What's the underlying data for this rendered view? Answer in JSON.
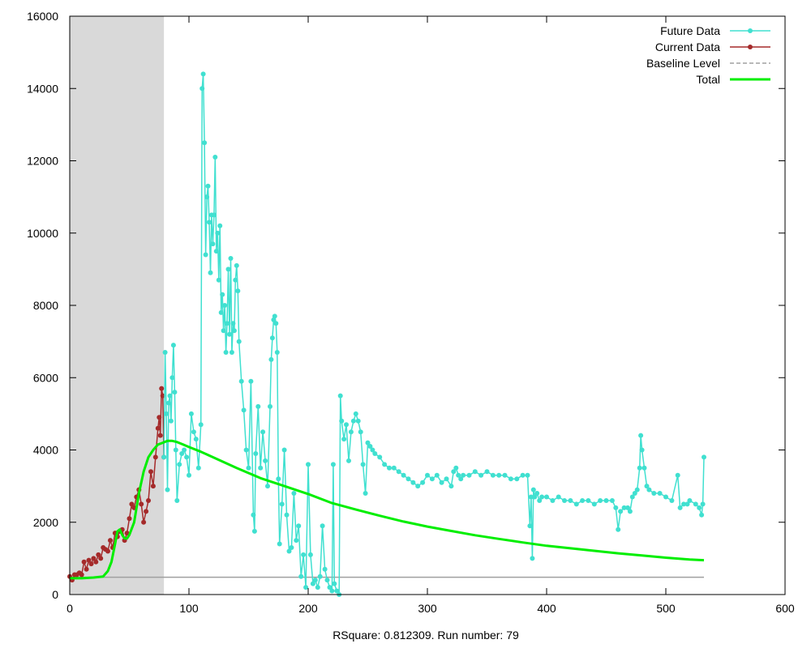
{
  "chart_data": {
    "type": "line",
    "title": "",
    "caption": "RSquare: 0.812309. Run number: 79",
    "xlim": [
      0,
      600
    ],
    "ylim": [
      0,
      16000
    ],
    "xticks": [
      0,
      100,
      200,
      300,
      400,
      500,
      600
    ],
    "yticks": [
      0,
      2000,
      4000,
      6000,
      8000,
      10000,
      12000,
      14000,
      16000
    ],
    "grid": false,
    "legend_position": "top-right",
    "shaded_region": {
      "x_start": 0,
      "x_end": 79,
      "color": "#d9d9d9"
    },
    "colors": {
      "future": "#40e0d0",
      "current": "#a52a2a",
      "baseline": "#a0a0a0",
      "total": "#00ee00"
    },
    "series": [
      {
        "name": "Current Data",
        "key": "current",
        "points": [
          [
            0,
            500
          ],
          [
            2,
            400
          ],
          [
            4,
            550
          ],
          [
            6,
            550
          ],
          [
            8,
            600
          ],
          [
            10,
            550
          ],
          [
            12,
            900
          ],
          [
            14,
            700
          ],
          [
            16,
            950
          ],
          [
            18,
            850
          ],
          [
            20,
            1000
          ],
          [
            22,
            900
          ],
          [
            24,
            1100
          ],
          [
            26,
            1000
          ],
          [
            28,
            1300
          ],
          [
            30,
            1250
          ],
          [
            32,
            1200
          ],
          [
            34,
            1500
          ],
          [
            36,
            1300
          ],
          [
            38,
            1700
          ],
          [
            40,
            1600
          ],
          [
            42,
            1750
          ],
          [
            44,
            1800
          ],
          [
            46,
            1500
          ],
          [
            48,
            1700
          ],
          [
            50,
            2100
          ],
          [
            52,
            2500
          ],
          [
            54,
            2400
          ],
          [
            56,
            2700
          ],
          [
            58,
            2900
          ],
          [
            60,
            2500
          ],
          [
            62,
            2000
          ],
          [
            64,
            2300
          ],
          [
            66,
            2600
          ],
          [
            68,
            3400
          ],
          [
            70,
            3000
          ],
          [
            72,
            3800
          ],
          [
            74,
            4600
          ],
          [
            75,
            4900
          ],
          [
            76,
            4400
          ],
          [
            77,
            5700
          ],
          [
            78,
            5500
          ],
          [
            79,
            3800
          ]
        ]
      },
      {
        "name": "Future Data",
        "key": "future",
        "points": [
          [
            79,
            3800
          ],
          [
            80,
            6700
          ],
          [
            81,
            5000
          ],
          [
            82,
            2900
          ],
          [
            83,
            5300
          ],
          [
            84,
            5500
          ],
          [
            85,
            4800
          ],
          [
            86,
            6000
          ],
          [
            87,
            6900
          ],
          [
            88,
            5600
          ],
          [
            89,
            4000
          ],
          [
            90,
            2600
          ],
          [
            92,
            3600
          ],
          [
            94,
            3900
          ],
          [
            96,
            4000
          ],
          [
            98,
            3800
          ],
          [
            100,
            3300
          ],
          [
            102,
            5000
          ],
          [
            104,
            4500
          ],
          [
            106,
            4300
          ],
          [
            108,
            3500
          ],
          [
            110,
            4700
          ],
          [
            111,
            14000
          ],
          [
            112,
            14400
          ],
          [
            113,
            12500
          ],
          [
            114,
            9400
          ],
          [
            115,
            11000
          ],
          [
            116,
            11300
          ],
          [
            117,
            10300
          ],
          [
            118,
            8900
          ],
          [
            119,
            10500
          ],
          [
            120,
            9700
          ],
          [
            121,
            10500
          ],
          [
            122,
            12100
          ],
          [
            123,
            9500
          ],
          [
            124,
            10000
          ],
          [
            125,
            8700
          ],
          [
            126,
            10200
          ],
          [
            127,
            7800
          ],
          [
            128,
            8300
          ],
          [
            129,
            7300
          ],
          [
            130,
            8000
          ],
          [
            131,
            6700
          ],
          [
            132,
            7500
          ],
          [
            133,
            9000
          ],
          [
            134,
            7200
          ],
          [
            135,
            9300
          ],
          [
            136,
            6700
          ],
          [
            137,
            7500
          ],
          [
            138,
            7300
          ],
          [
            139,
            8700
          ],
          [
            140,
            9100
          ],
          [
            141,
            8400
          ],
          [
            142,
            7000
          ],
          [
            144,
            5900
          ],
          [
            146,
            5100
          ],
          [
            148,
            4000
          ],
          [
            150,
            3500
          ],
          [
            152,
            5900
          ],
          [
            154,
            2200
          ],
          [
            155,
            1750
          ],
          [
            156,
            3900
          ],
          [
            158,
            5200
          ],
          [
            160,
            3500
          ],
          [
            162,
            4500
          ],
          [
            164,
            3700
          ],
          [
            166,
            3000
          ],
          [
            168,
            5200
          ],
          [
            169,
            6500
          ],
          [
            170,
            7100
          ],
          [
            171,
            7600
          ],
          [
            172,
            7700
          ],
          [
            173,
            7500
          ],
          [
            174,
            6700
          ],
          [
            175,
            3200
          ],
          [
            176,
            1400
          ],
          [
            178,
            2500
          ],
          [
            180,
            4000
          ],
          [
            182,
            2200
          ],
          [
            184,
            1200
          ],
          [
            186,
            1300
          ],
          [
            188,
            2800
          ],
          [
            190,
            1500
          ],
          [
            192,
            1900
          ],
          [
            194,
            500
          ],
          [
            196,
            1100
          ],
          [
            198,
            200
          ],
          [
            200,
            3600
          ],
          [
            202,
            1100
          ],
          [
            204,
            300
          ],
          [
            206,
            400
          ],
          [
            208,
            200
          ],
          [
            210,
            500
          ],
          [
            212,
            1900
          ],
          [
            214,
            700
          ],
          [
            216,
            400
          ],
          [
            218,
            200
          ],
          [
            220,
            100
          ],
          [
            221,
            3600
          ],
          [
            222,
            300
          ],
          [
            224,
            100
          ],
          [
            226,
            0
          ],
          [
            227,
            5500
          ],
          [
            228,
            4800
          ],
          [
            230,
            4300
          ],
          [
            232,
            4700
          ],
          [
            234,
            3700
          ],
          [
            236,
            4500
          ],
          [
            238,
            4800
          ],
          [
            240,
            5000
          ],
          [
            242,
            4800
          ],
          [
            244,
            4500
          ],
          [
            246,
            3600
          ],
          [
            248,
            2800
          ],
          [
            250,
            4200
          ],
          [
            252,
            4100
          ],
          [
            254,
            4000
          ],
          [
            256,
            3900
          ],
          [
            260,
            3800
          ],
          [
            264,
            3600
          ],
          [
            268,
            3500
          ],
          [
            272,
            3500
          ],
          [
            276,
            3400
          ],
          [
            280,
            3300
          ],
          [
            284,
            3200
          ],
          [
            288,
            3100
          ],
          [
            292,
            3000
          ],
          [
            296,
            3100
          ],
          [
            300,
            3300
          ],
          [
            304,
            3200
          ],
          [
            308,
            3300
          ],
          [
            312,
            3100
          ],
          [
            316,
            3200
          ],
          [
            320,
            3000
          ],
          [
            322,
            3400
          ],
          [
            324,
            3500
          ],
          [
            326,
            3300
          ],
          [
            328,
            3200
          ],
          [
            330,
            3300
          ],
          [
            335,
            3300
          ],
          [
            340,
            3400
          ],
          [
            345,
            3300
          ],
          [
            350,
            3400
          ],
          [
            355,
            3300
          ],
          [
            360,
            3300
          ],
          [
            365,
            3300
          ],
          [
            370,
            3200
          ],
          [
            375,
            3200
          ],
          [
            380,
            3300
          ],
          [
            384,
            3300
          ],
          [
            386,
            1900
          ],
          [
            387,
            2700
          ],
          [
            388,
            1000
          ],
          [
            389,
            2900
          ],
          [
            390,
            2700
          ],
          [
            392,
            2800
          ],
          [
            394,
            2600
          ],
          [
            396,
            2700
          ],
          [
            400,
            2700
          ],
          [
            405,
            2600
          ],
          [
            410,
            2700
          ],
          [
            415,
            2600
          ],
          [
            420,
            2600
          ],
          [
            425,
            2500
          ],
          [
            430,
            2600
          ],
          [
            435,
            2600
          ],
          [
            440,
            2500
          ],
          [
            445,
            2600
          ],
          [
            450,
            2600
          ],
          [
            455,
            2600
          ],
          [
            458,
            2400
          ],
          [
            460,
            1800
          ],
          [
            462,
            2300
          ],
          [
            465,
            2400
          ],
          [
            468,
            2400
          ],
          [
            470,
            2300
          ],
          [
            472,
            2700
          ],
          [
            474,
            2800
          ],
          [
            476,
            2900
          ],
          [
            478,
            3500
          ],
          [
            479,
            4400
          ],
          [
            480,
            4000
          ],
          [
            482,
            3500
          ],
          [
            484,
            3000
          ],
          [
            486,
            2900
          ],
          [
            490,
            2800
          ],
          [
            495,
            2800
          ],
          [
            500,
            2700
          ],
          [
            505,
            2600
          ],
          [
            510,
            3300
          ],
          [
            512,
            2400
          ],
          [
            515,
            2500
          ],
          [
            518,
            2500
          ],
          [
            520,
            2600
          ],
          [
            525,
            2500
          ],
          [
            528,
            2400
          ],
          [
            530,
            2200
          ],
          [
            531,
            2500
          ],
          [
            532,
            3800
          ]
        ]
      },
      {
        "name": "Baseline Level",
        "key": "baseline",
        "points": [
          [
            0,
            480
          ],
          [
            532,
            480
          ]
        ]
      },
      {
        "name": "Total",
        "key": "total",
        "points": [
          [
            0,
            450
          ],
          [
            10,
            450
          ],
          [
            20,
            470
          ],
          [
            28,
            500
          ],
          [
            32,
            650
          ],
          [
            35,
            900
          ],
          [
            38,
            1400
          ],
          [
            40,
            1750
          ],
          [
            42,
            1800
          ],
          [
            44,
            1650
          ],
          [
            46,
            1550
          ],
          [
            48,
            1550
          ],
          [
            50,
            1650
          ],
          [
            54,
            2000
          ],
          [
            58,
            2800
          ],
          [
            62,
            3400
          ],
          [
            66,
            3800
          ],
          [
            70,
            4000
          ],
          [
            74,
            4150
          ],
          [
            78,
            4200
          ],
          [
            82,
            4250
          ],
          [
            86,
            4250
          ],
          [
            90,
            4220
          ],
          [
            95,
            4150
          ],
          [
            100,
            4080
          ],
          [
            110,
            3950
          ],
          [
            120,
            3800
          ],
          [
            140,
            3500
          ],
          [
            160,
            3220
          ],
          [
            180,
            3000
          ],
          [
            200,
            2780
          ],
          [
            220,
            2530
          ],
          [
            240,
            2350
          ],
          [
            260,
            2180
          ],
          [
            280,
            2020
          ],
          [
            300,
            1880
          ],
          [
            320,
            1760
          ],
          [
            340,
            1640
          ],
          [
            360,
            1540
          ],
          [
            380,
            1440
          ],
          [
            400,
            1350
          ],
          [
            420,
            1280
          ],
          [
            440,
            1210
          ],
          [
            460,
            1140
          ],
          [
            480,
            1080
          ],
          [
            500,
            1020
          ],
          [
            520,
            970
          ],
          [
            532,
            950
          ]
        ]
      }
    ]
  }
}
